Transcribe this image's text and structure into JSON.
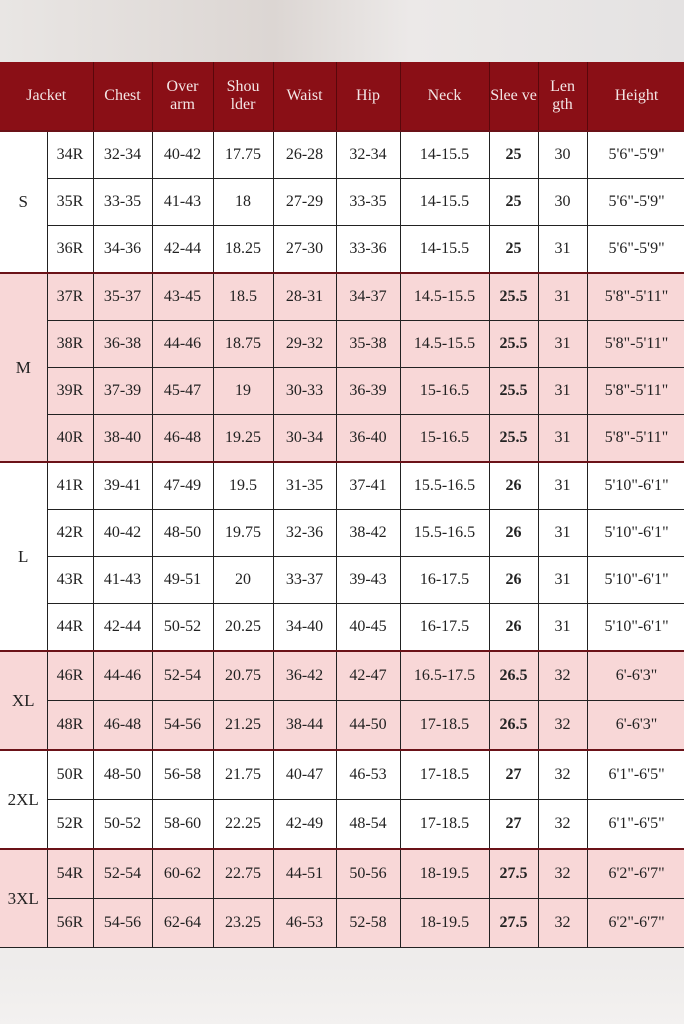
{
  "headers": [
    "Jacket",
    "Chest",
    "Over arm",
    "Shou lder",
    "Waist",
    "Hip",
    "Neck",
    "Slee ve",
    "Len gth",
    "Height"
  ],
  "colors": {
    "header_bg": "#8a0f16",
    "pink_row": "#f8d7d7",
    "white_row": "#ffffff"
  },
  "groups": [
    {
      "size": "S",
      "shade": "white",
      "rows": [
        [
          "34R",
          "32-34",
          "40-42",
          "17.75",
          "26-28",
          "32-34",
          "14-15.5",
          "25",
          "30",
          "5'6\"-5'9\""
        ],
        [
          "35R",
          "33-35",
          "41-43",
          "18",
          "27-29",
          "33-35",
          "14-15.5",
          "25",
          "30",
          "5'6\"-5'9\""
        ],
        [
          "36R",
          "34-36",
          "42-44",
          "18.25",
          "27-30",
          "33-36",
          "14-15.5",
          "25",
          "31",
          "5'6\"-5'9\""
        ]
      ]
    },
    {
      "size": "M",
      "shade": "pink",
      "rows": [
        [
          "37R",
          "35-37",
          "43-45",
          "18.5",
          "28-31",
          "34-37",
          "14.5-15.5",
          "25.5",
          "31",
          "5'8\"-5'11\""
        ],
        [
          "38R",
          "36-38",
          "44-46",
          "18.75",
          "29-32",
          "35-38",
          "14.5-15.5",
          "25.5",
          "31",
          "5'8\"-5'11\""
        ],
        [
          "39R",
          "37-39",
          "45-47",
          "19",
          "30-33",
          "36-39",
          "15-16.5",
          "25.5",
          "31",
          "5'8\"-5'11\""
        ],
        [
          "40R",
          "38-40",
          "46-48",
          "19.25",
          "30-34",
          "36-40",
          "15-16.5",
          "25.5",
          "31",
          "5'8\"-5'11\""
        ]
      ]
    },
    {
      "size": "L",
      "shade": "white",
      "rows": [
        [
          "41R",
          "39-41",
          "47-49",
          "19.5",
          "31-35",
          "37-41",
          "15.5-16.5",
          "26",
          "31",
          "5'10\"-6'1\""
        ],
        [
          "42R",
          "40-42",
          "48-50",
          "19.75",
          "32-36",
          "38-42",
          "15.5-16.5",
          "26",
          "31",
          "5'10\"-6'1\""
        ],
        [
          "43R",
          "41-43",
          "49-51",
          "20",
          "33-37",
          "39-43",
          "16-17.5",
          "26",
          "31",
          "5'10\"-6'1\""
        ],
        [
          "44R",
          "42-44",
          "50-52",
          "20.25",
          "34-40",
          "40-45",
          "16-17.5",
          "26",
          "31",
          "5'10\"-6'1\""
        ]
      ]
    },
    {
      "size": "XL",
      "shade": "pink",
      "rows": [
        [
          "46R",
          "44-46",
          "52-54",
          "20.75",
          "36-42",
          "42-47",
          "16.5-17.5",
          "26.5",
          "32",
          "6'-6'3\""
        ],
        [
          "48R",
          "46-48",
          "54-56",
          "21.25",
          "38-44",
          "44-50",
          "17-18.5",
          "26.5",
          "32",
          "6'-6'3\""
        ]
      ]
    },
    {
      "size": "2XL",
      "shade": "white",
      "rows": [
        [
          "50R",
          "48-50",
          "56-58",
          "21.75",
          "40-47",
          "46-53",
          "17-18.5",
          "27",
          "32",
          "6'1\"-6'5\""
        ],
        [
          "52R",
          "50-52",
          "58-60",
          "22.25",
          "42-49",
          "48-54",
          "17-18.5",
          "27",
          "32",
          "6'1\"-6'5\""
        ]
      ]
    },
    {
      "size": "3XL",
      "shade": "pink",
      "rows": [
        [
          "54R",
          "52-54",
          "60-62",
          "22.75",
          "44-51",
          "50-56",
          "18-19.5",
          "27.5",
          "32",
          "6'2\"-6'7\""
        ],
        [
          "56R",
          "54-56",
          "62-64",
          "23.25",
          "46-53",
          "52-58",
          "18-19.5",
          "27.5",
          "32",
          "6'2\"-6'7\""
        ]
      ]
    }
  ]
}
